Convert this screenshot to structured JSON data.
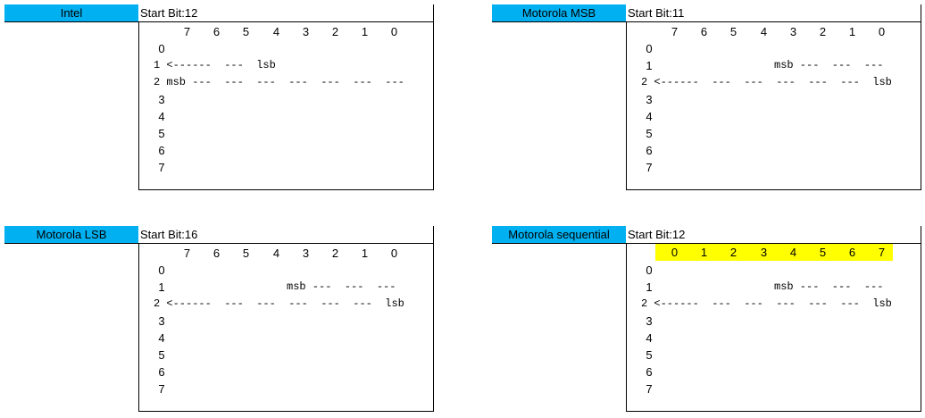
{
  "bits_header": [
    "7",
    "6",
    "5",
    "4",
    "3",
    "2",
    "1",
    "0"
  ],
  "seq_header": [
    "0",
    "1",
    "2",
    "3",
    "4",
    "5",
    "6",
    "7"
  ],
  "row_numbers": [
    "0",
    "1",
    "2",
    "3",
    "4",
    "5",
    "6",
    "7"
  ],
  "colors": {
    "label_bg": "#00b0f0",
    "highlight": "#ffff00"
  },
  "blocks": {
    "intel": {
      "label": "Intel",
      "start_bit": "Start Bit:12",
      "row1": "1 <------  ---  lsb",
      "row2": "2 msb ---  ---  ---  ---  ---  ---  ---"
    },
    "motorola_msb": {
      "label": "Motorola MSB",
      "start_bit": "Start Bit:11",
      "row1": "msb ---  ---  ---",
      "row2": "2 <------  ---  ---  ---  ---  ---  lsb"
    },
    "motorola_lsb": {
      "label": "Motorola LSB",
      "start_bit": "Start Bit:16",
      "row1": "msb ---  ---  ---",
      "row2": "2 <------  ---  ---  ---  ---  ---  lsb"
    },
    "motorola_seq": {
      "label": "Motorola sequential",
      "start_bit": "Start Bit:12",
      "row1": "msb ---  ---  ---",
      "row2": "2 <------  ---  ---  ---  ---  ---  lsb"
    }
  }
}
